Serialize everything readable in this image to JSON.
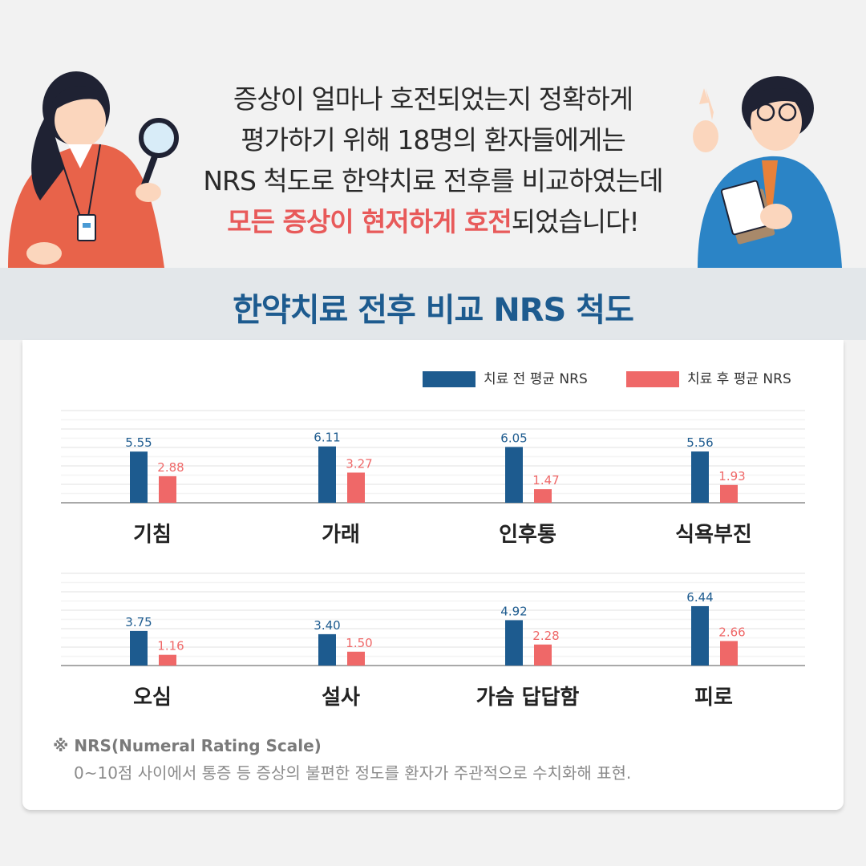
{
  "intro": {
    "line1": "증상이 얼마나 호전되었는지 정확하게",
    "line2": "평가하기 위해 18명의 환자들에게는",
    "line3": "NRS 척도로 한약치료 전후를 비교하였는데",
    "line4_highlight": "모든 증상이 현저하게 호전",
    "line4_rest": "되었습니다!"
  },
  "colors": {
    "before": "#1d5b8f",
    "after": "#ef6868",
    "highlight": "#e85a5a",
    "title": "#1d5b8f"
  },
  "chart_data": {
    "type": "bar",
    "title": "한약치료 전후 비교 NRS 척도",
    "legend": {
      "position": "top-right"
    },
    "series": [
      {
        "name": "치료 전 평균 NRS",
        "color": "#1d5b8f"
      },
      {
        "name": "치료 후 평균 NRS",
        "color": "#ef6868"
      }
    ],
    "panels": [
      {
        "categories": [
          "기침",
          "가래",
          "인후통",
          "식욕부진"
        ],
        "before": [
          5.55,
          6.11,
          6.05,
          5.56
        ],
        "before_labels": [
          "5.55",
          "6.11",
          "6.05",
          "5.56"
        ],
        "after": [
          2.88,
          3.27,
          1.47,
          1.93
        ],
        "after_labels": [
          "2.88",
          "3.27",
          "1.47",
          "1.93"
        ]
      },
      {
        "categories": [
          "오심",
          "설사",
          "가슴 답답함",
          "피로"
        ],
        "before": [
          3.75,
          3.4,
          4.92,
          6.44
        ],
        "before_labels": [
          "3.75",
          "3.40",
          "4.92",
          "6.44"
        ],
        "after": [
          1.16,
          1.5,
          2.28,
          2.66
        ],
        "after_labels": [
          "1.16",
          "1.50",
          "2.28",
          "2.66"
        ]
      }
    ],
    "grid": true,
    "ylim": [
      0,
      10
    ]
  },
  "footnote": {
    "title": "※ NRS(Numeral Rating Scale)",
    "text": "0~10점 사이에서 통증 등 증상의 불편한 정도를 환자가 주관적으로 수치화해 표현."
  }
}
